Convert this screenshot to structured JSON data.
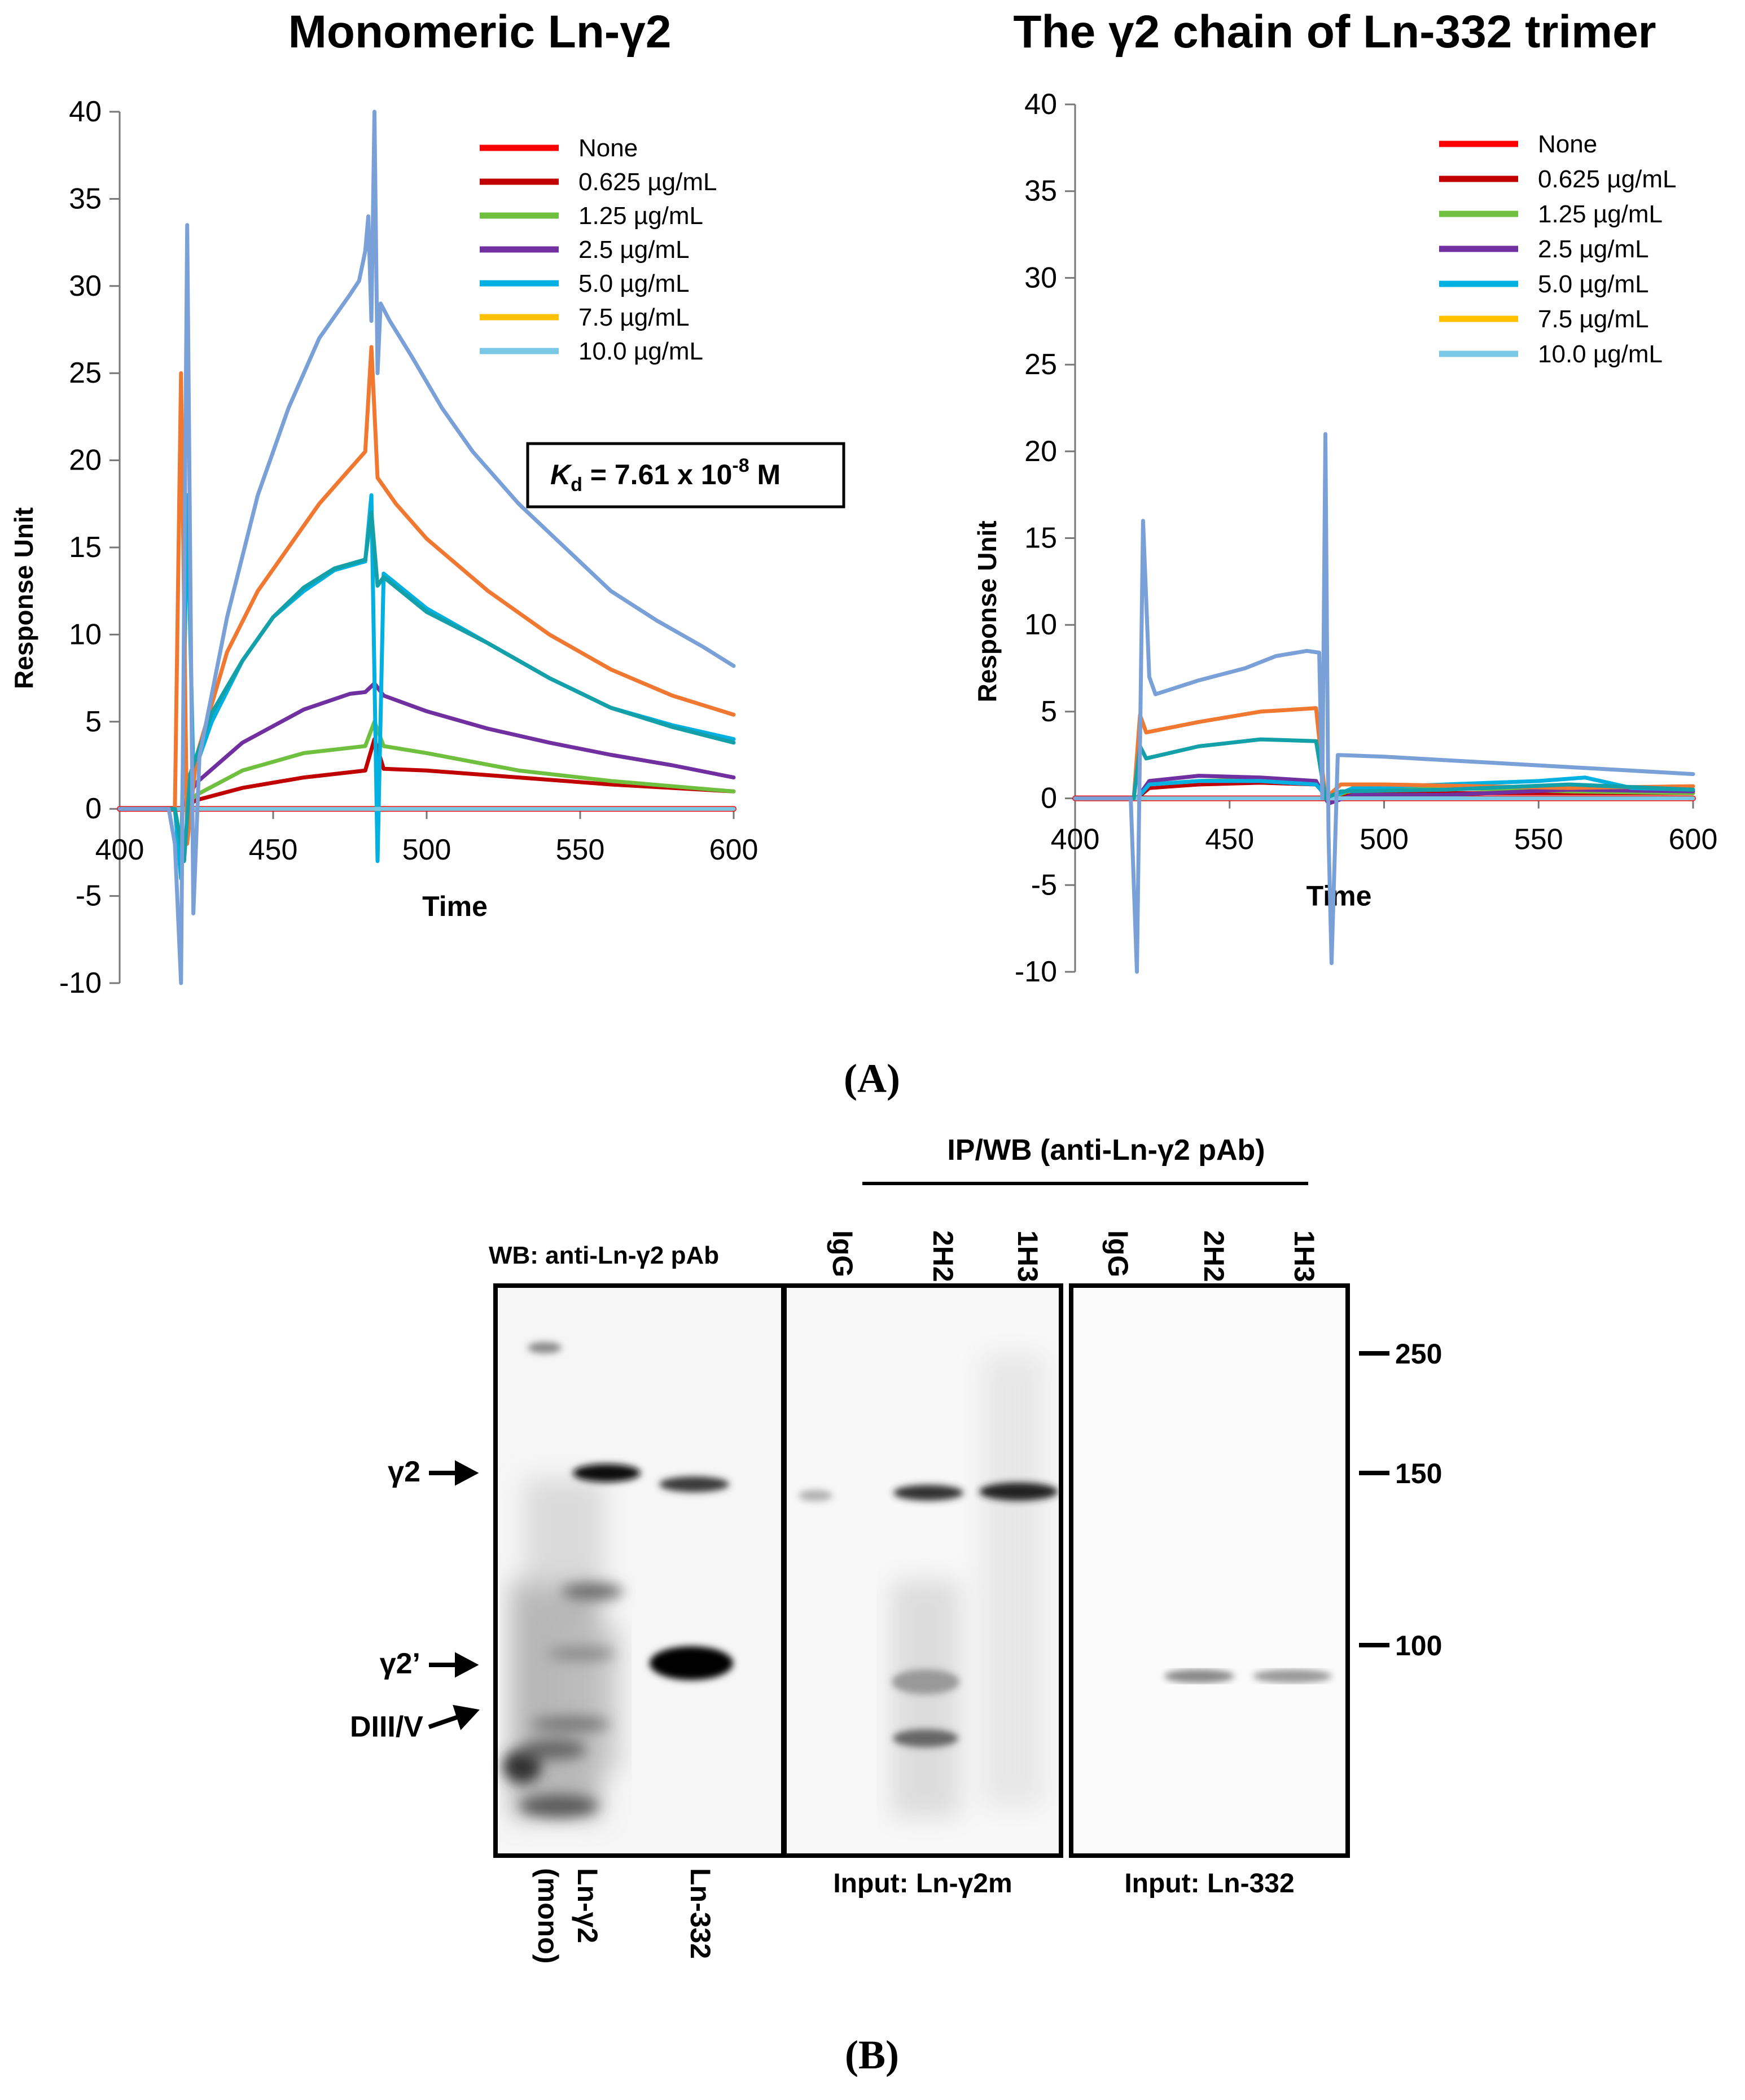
{
  "figure": {
    "panel_a_label": "(A)",
    "panel_b_label": "(B)",
    "panel_b": {
      "wb_title": "WB: anti-Ln-γ2 pAb",
      "ip_title": "IP/WB (anti-Ln-γ2 pAb)",
      "lane_labels_mid": [
        "IgG",
        "2H2",
        "1H3"
      ],
      "lane_labels_right": [
        "IgG",
        "2H2",
        "1H3"
      ],
      "band_labels": [
        "γ2",
        "γ2’",
        "DIII/V"
      ],
      "mw_markers": [
        "250",
        "150",
        "100"
      ],
      "bottom_left_lanes": [
        "Ln-γ2",
        "(mono)",
        "Ln-332"
      ],
      "input_mid": "Input: Ln-γ2m",
      "input_right": "Input: Ln-332"
    }
  },
  "chart_data": [
    {
      "type": "line",
      "title": "Monomeric Ln-γ2",
      "xlabel": "Time",
      "ylabel": "Response Unit",
      "xlim": [
        400,
        600
      ],
      "ylim": [
        -10,
        40
      ],
      "xticks": [
        400,
        450,
        500,
        550,
        600
      ],
      "yticks": [
        -10,
        -5,
        0,
        5,
        10,
        15,
        20,
        25,
        30,
        35,
        40
      ],
      "annotation": {
        "k": "K",
        "sub": "d",
        "text": " = 7.61 x 10",
        "sup": "-8",
        "unit": " M"
      },
      "series": [
        {
          "name": "None",
          "color": "#ff0000",
          "points": [
            [
              400,
              0
            ],
            [
              600,
              0
            ]
          ]
        },
        {
          "name": "0.625 µg/mL",
          "color": "#c00000",
          "points": [
            [
              400,
              0
            ],
            [
              420,
              0
            ],
            [
              425,
              0.5
            ],
            [
              440,
              1.2
            ],
            [
              460,
              1.8
            ],
            [
              480,
              2.2
            ],
            [
              483,
              4
            ],
            [
              486,
              2.3
            ],
            [
              500,
              2.2
            ],
            [
              530,
              1.8
            ],
            [
              560,
              1.4
            ],
            [
              600,
              1.0
            ]
          ]
        },
        {
          "name": "1.25 µg/mL",
          "color": "#70c040",
          "points": [
            [
              400,
              0
            ],
            [
              420,
              0
            ],
            [
              425,
              0.8
            ],
            [
              440,
              2.2
            ],
            [
              460,
              3.2
            ],
            [
              480,
              3.6
            ],
            [
              483,
              5
            ],
            [
              486,
              3.6
            ],
            [
              500,
              3.2
            ],
            [
              530,
              2.2
            ],
            [
              560,
              1.6
            ],
            [
              600,
              1.0
            ]
          ]
        },
        {
          "name": "2.5 µg/mL",
          "color": "#7030a0",
          "points": [
            [
              400,
              0
            ],
            [
              420,
              0
            ],
            [
              425,
              1.5
            ],
            [
              440,
              3.8
            ],
            [
              460,
              5.7
            ],
            [
              475,
              6.6
            ],
            [
              480,
              6.7
            ],
            [
              483,
              7.2
            ],
            [
              486,
              6.5
            ],
            [
              500,
              5.6
            ],
            [
              520,
              4.6
            ],
            [
              540,
              3.8
            ],
            [
              560,
              3.1
            ],
            [
              580,
              2.5
            ],
            [
              600,
              1.8
            ]
          ]
        },
        {
          "name": "5.0 µg/mL",
          "color": "#00b0e0",
          "points": [
            [
              400,
              0
            ],
            [
              418,
              0
            ],
            [
              420,
              -4
            ],
            [
              422,
              18
            ],
            [
              424,
              2
            ],
            [
              430,
              5
            ],
            [
              440,
              8.5
            ],
            [
              450,
              11
            ],
            [
              460,
              12.5
            ],
            [
              470,
              13.7
            ],
            [
              480,
              14.2
            ],
            [
              482,
              18
            ],
            [
              484,
              -3
            ],
            [
              486,
              13.5
            ],
            [
              500,
              11.5
            ],
            [
              520,
              9.5
            ],
            [
              540,
              7.5
            ],
            [
              560,
              5.8
            ],
            [
              580,
              4.8
            ],
            [
              600,
              4.0
            ]
          ]
        },
        {
          "name": "7.5 µg/mL",
          "color": "#ffc000",
          "points": [
            [
              400,
              0
            ],
            [
              600,
              0
            ]
          ]
        },
        {
          "name": "10.0 µg/mL",
          "color": "#78c8e6",
          "points": [
            [
              400,
              0
            ],
            [
              600,
              0
            ]
          ]
        },
        {
          "name": "",
          "color": "#f07830",
          "points": [
            [
              400,
              0
            ],
            [
              418,
              0
            ],
            [
              420,
              25
            ],
            [
              422,
              -2
            ],
            [
              425,
              3
            ],
            [
              435,
              9
            ],
            [
              445,
              12.5
            ],
            [
              455,
              15
            ],
            [
              465,
              17.5
            ],
            [
              475,
              19.5
            ],
            [
              480,
              20.5
            ],
            [
              482,
              26.5
            ],
            [
              484,
              19
            ],
            [
              490,
              17.5
            ],
            [
              500,
              15.5
            ],
            [
              520,
              12.5
            ],
            [
              540,
              10
            ],
            [
              560,
              8
            ],
            [
              580,
              6.5
            ],
            [
              600,
              5.4
            ]
          ]
        },
        {
          "name": "",
          "color": "#14a0a8",
          "points": [
            [
              400,
              0
            ],
            [
              418,
              0
            ],
            [
              421,
              -3
            ],
            [
              423,
              2
            ],
            [
              430,
              5.5
            ],
            [
              440,
              8.5
            ],
            [
              450,
              11
            ],
            [
              460,
              12.7
            ],
            [
              470,
              13.8
            ],
            [
              480,
              14.3
            ],
            [
              482,
              17
            ],
            [
              484,
              12.8
            ],
            [
              486,
              13.3
            ],
            [
              500,
              11.3
            ],
            [
              520,
              9.5
            ],
            [
              540,
              7.5
            ],
            [
              560,
              5.8
            ],
            [
              580,
              4.7
            ],
            [
              600,
              3.8
            ]
          ]
        },
        {
          "name": "",
          "color": "#7aa0d8",
          "points": [
            [
              400,
              0
            ],
            [
              416,
              0
            ],
            [
              418,
              -2
            ],
            [
              420,
              -10
            ],
            [
              422,
              33.5
            ],
            [
              424,
              -6
            ],
            [
              426,
              3
            ],
            [
              435,
              11
            ],
            [
              445,
              18
            ],
            [
              455,
              23
            ],
            [
              465,
              27
            ],
            [
              475,
              29.5
            ],
            [
              478,
              30.3
            ],
            [
              480,
              32
            ],
            [
              481,
              34
            ],
            [
              482,
              28
            ],
            [
              483,
              40
            ],
            [
              484,
              25
            ],
            [
              485,
              29
            ],
            [
              488,
              28
            ],
            [
              495,
              26
            ],
            [
              505,
              23
            ],
            [
              515,
              20.5
            ],
            [
              530,
              17.5
            ],
            [
              545,
              15
            ],
            [
              560,
              12.5
            ],
            [
              575,
              10.8
            ],
            [
              590,
              9.3
            ],
            [
              600,
              8.2
            ]
          ]
        }
      ]
    },
    {
      "type": "line",
      "title": "The γ2 chain of Ln-332 trimer",
      "xlabel": "Time",
      "ylabel": "Response Unit",
      "xlim": [
        400,
        600
      ],
      "ylim": [
        -10,
        40
      ],
      "xticks": [
        400,
        450,
        500,
        550,
        600
      ],
      "yticks": [
        -10,
        -5,
        0,
        5,
        10,
        15,
        20,
        25,
        30,
        35,
        40
      ],
      "series": [
        {
          "name": "None",
          "color": "#ff0000",
          "points": [
            [
              400,
              0
            ],
            [
              600,
              0
            ]
          ]
        },
        {
          "name": "0.625 µg/mL",
          "color": "#c00000",
          "points": [
            [
              400,
              0
            ],
            [
              420,
              0
            ],
            [
              424,
              0.6
            ],
            [
              440,
              0.8
            ],
            [
              460,
              0.9
            ],
            [
              478,
              0.8
            ],
            [
              482,
              0
            ],
            [
              490,
              0.2
            ],
            [
              520,
              0.3
            ],
            [
              560,
              0.3
            ],
            [
              600,
              0.3
            ]
          ]
        },
        {
          "name": "1.25 µg/mL",
          "color": "#70c040",
          "points": [
            [
              400,
              0
            ],
            [
              420,
              0
            ],
            [
              424,
              0.8
            ],
            [
              440,
              1.0
            ],
            [
              460,
              1.1
            ],
            [
              478,
              0.9
            ],
            [
              482,
              0
            ],
            [
              490,
              0.5
            ],
            [
              520,
              0.6
            ],
            [
              560,
              0.4
            ],
            [
              600,
              0.3
            ]
          ]
        },
        {
          "name": "2.5 µg/mL",
          "color": "#7030a0",
          "points": [
            [
              400,
              0
            ],
            [
              420,
              0
            ],
            [
              424,
              1.0
            ],
            [
              440,
              1.3
            ],
            [
              460,
              1.2
            ],
            [
              478,
              1.0
            ],
            [
              482,
              -0.3
            ],
            [
              490,
              0.2
            ],
            [
              520,
              0.2
            ],
            [
              560,
              0.5
            ],
            [
              600,
              0.4
            ]
          ]
        },
        {
          "name": "5.0 µg/mL",
          "color": "#00b0e0",
          "points": [
            [
              400,
              0
            ],
            [
              420,
              0
            ],
            [
              424,
              0.8
            ],
            [
              440,
              1.0
            ],
            [
              460,
              1.0
            ],
            [
              478,
              0.8
            ],
            [
              482,
              0
            ],
            [
              490,
              0.6
            ],
            [
              520,
              0.8
            ],
            [
              550,
              1.0
            ],
            [
              565,
              1.2
            ],
            [
              580,
              0.6
            ],
            [
              600,
              0.5
            ]
          ]
        },
        {
          "name": "7.5 µg/mL",
          "color": "#ffc000",
          "points": [
            [
              400,
              0
            ],
            [
              600,
              0
            ]
          ]
        },
        {
          "name": "10.0 µg/mL",
          "color": "#78c8e6",
          "points": [
            [
              400,
              0
            ],
            [
              600,
              0
            ]
          ]
        },
        {
          "name": "",
          "color": "#f07830",
          "points": [
            [
              400,
              0
            ],
            [
              419,
              0
            ],
            [
              421,
              4.8
            ],
            [
              423,
              3.8
            ],
            [
              440,
              4.4
            ],
            [
              460,
              5.0
            ],
            [
              478,
              5.2
            ],
            [
              481,
              0
            ],
            [
              486,
              0.8
            ],
            [
              500,
              0.8
            ],
            [
              530,
              0.7
            ],
            [
              560,
              0.6
            ],
            [
              600,
              0.7
            ]
          ]
        },
        {
          "name": "",
          "color": "#14a0a8",
          "points": [
            [
              400,
              0
            ],
            [
              419,
              0
            ],
            [
              421,
              3
            ],
            [
              423,
              2.3
            ],
            [
              440,
              3.0
            ],
            [
              460,
              3.4
            ],
            [
              478,
              3.3
            ],
            [
              481,
              0
            ],
            [
              486,
              0.4
            ],
            [
              520,
              0.5
            ],
            [
              560,
              0.8
            ],
            [
              600,
              0.5
            ]
          ]
        },
        {
          "name": "",
          "color": "#7aa0d8",
          "points": [
            [
              400,
              0
            ],
            [
              418,
              0
            ],
            [
              420,
              -10
            ],
            [
              422,
              16
            ],
            [
              424,
              7
            ],
            [
              426,
              6
            ],
            [
              440,
              6.8
            ],
            [
              455,
              7.5
            ],
            [
              465,
              8.2
            ],
            [
              475,
              8.5
            ],
            [
              479,
              8.4
            ],
            [
              480,
              0
            ],
            [
              481,
              21
            ],
            [
              482,
              -2
            ],
            [
              483,
              -9.5
            ],
            [
              485,
              2.5
            ],
            [
              500,
              2.4
            ],
            [
              520,
              2.2
            ],
            [
              540,
              2.0
            ],
            [
              560,
              1.8
            ],
            [
              580,
              1.6
            ],
            [
              600,
              1.4
            ]
          ]
        }
      ]
    }
  ]
}
